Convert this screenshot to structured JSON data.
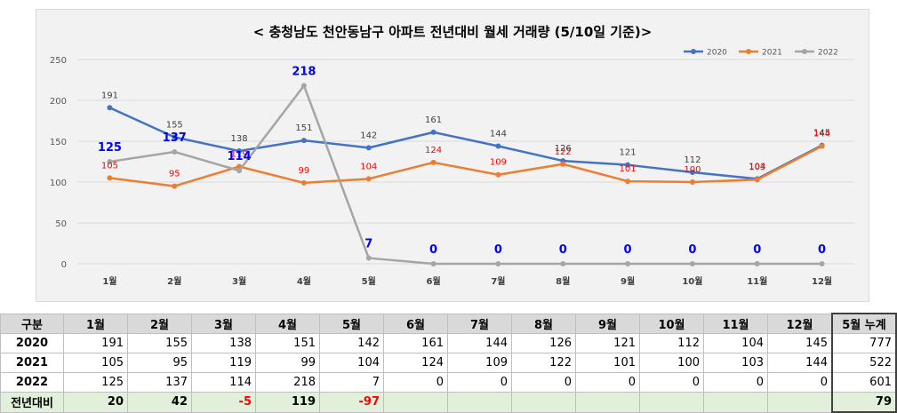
{
  "chart_data": {
    "type": "line",
    "title": "< 충청남도 천안동남구  아파트 전년대비 월세 거래량 (5/10일 기준)>",
    "categories": [
      "1월",
      "2월",
      "3월",
      "4월",
      "5월",
      "6월",
      "7월",
      "8월",
      "9월",
      "10월",
      "11월",
      "12월"
    ],
    "ylim": [
      0,
      250
    ],
    "yticks": [
      "0",
      "50",
      "100",
      "150",
      "200",
      "250"
    ],
    "grid": true,
    "legend": "top-right",
    "series": [
      {
        "name": "2020",
        "color": "#4472c4",
        "values": [
          191,
          155,
          138,
          151,
          142,
          161,
          144,
          126,
          121,
          112,
          104,
          145
        ],
        "labels": [
          "191",
          "155",
          "138",
          "151",
          "142",
          "161",
          "144",
          "126",
          "121",
          "112",
          "104",
          "145"
        ]
      },
      {
        "name": "2021",
        "color": "#ed7d31",
        "values": [
          105,
          95,
          119,
          99,
          104,
          124,
          109,
          122,
          101,
          100,
          103,
          144
        ],
        "labels": [
          "105",
          "95",
          "119",
          "99",
          "104",
          "124",
          "109",
          "122",
          "101",
          "100",
          "103",
          "144"
        ]
      },
      {
        "name": "2022",
        "color": "#a5a5a5",
        "values": [
          125,
          137,
          114,
          218,
          7,
          0,
          0,
          0,
          0,
          0,
          0,
          0
        ],
        "labels": [
          "125",
          "137",
          "114",
          "218",
          "7",
          "0",
          "0",
          "0",
          "0",
          "0",
          "0",
          "0"
        ]
      }
    ]
  },
  "table": {
    "header": [
      "구분",
      "1월",
      "2월",
      "3월",
      "4월",
      "5월",
      "6월",
      "7월",
      "8월",
      "9월",
      "10월",
      "11월",
      "12월",
      "5월 누계"
    ],
    "rows": [
      {
        "label": "2020",
        "cells": [
          "191",
          "155",
          "138",
          "151",
          "142",
          "161",
          "144",
          "126",
          "121",
          "112",
          "104",
          "145",
          "777"
        ]
      },
      {
        "label": "2021",
        "cells": [
          "105",
          "95",
          "119",
          "99",
          "104",
          "124",
          "109",
          "122",
          "101",
          "100",
          "103",
          "144",
          "522"
        ]
      },
      {
        "label": "2022",
        "cells": [
          "125",
          "137",
          "114",
          "218",
          "7",
          "0",
          "0",
          "0",
          "0",
          "0",
          "0",
          "0",
          "601"
        ]
      }
    ],
    "diff": {
      "label": "전년대비",
      "cells": [
        "20",
        "42",
        "-5",
        "119",
        "-97",
        "",
        "",
        "",
        "",
        "",
        "",
        "",
        "79"
      ]
    }
  }
}
